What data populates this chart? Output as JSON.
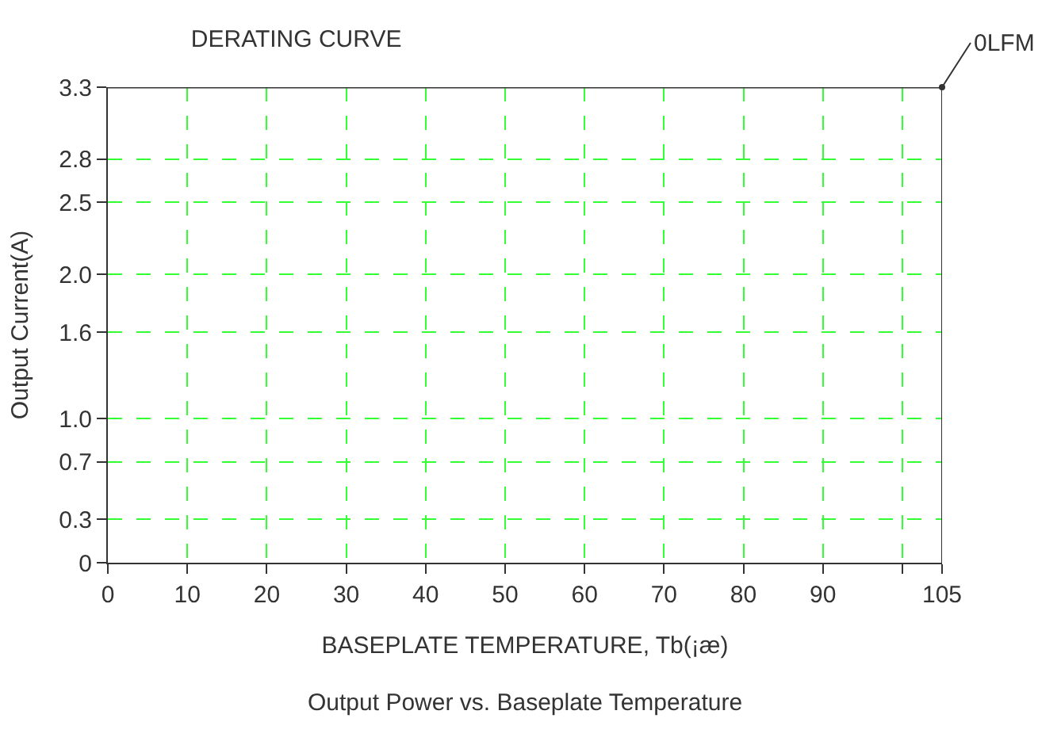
{
  "chart_data": {
    "type": "line",
    "title": "DERATING CURVE",
    "xlabel": "BASEPLATE TEMPERATURE, Tb(¡æ)",
    "ylabel": "Output Current(A)",
    "annotations": [
      {
        "text": "0LFM",
        "x": 105,
        "y": 3.3
      },
      "Output Power vs. Baseplate Temperature"
    ],
    "x": [
      0,
      105
    ],
    "series": [
      {
        "color": "#333333",
        "values": [
          3.3,
          3.3
        ]
      }
    ],
    "xlim": [
      0,
      105
    ],
    "xticks": [
      0,
      10,
      20,
      30,
      40,
      50,
      60,
      70,
      80,
      90,
      {
        "value": 100,
        "label": null
      },
      105
    ],
    "ylim": [
      0,
      3.3
    ],
    "yticks": [
      0,
      0.3,
      0.7,
      {
        "value": 1,
        "label": "1.0"
      },
      1.6,
      {
        "value": 2,
        "label": "2.0"
      },
      2.5,
      2.8,
      3.3
    ],
    "grid": true,
    "line_style": "solid"
  }
}
